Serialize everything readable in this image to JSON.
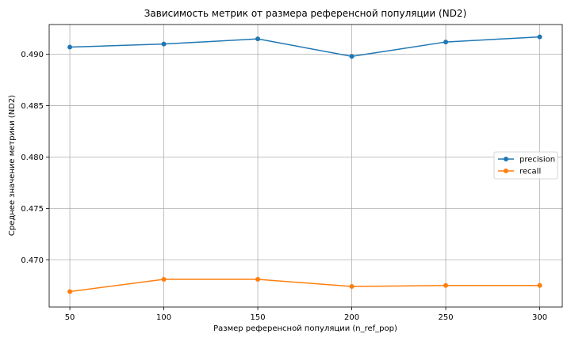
{
  "chart_data": {
    "type": "line",
    "title": "Зависимость метрик от размера референсной популяции (ND2)",
    "xlabel": "Размер референсной популяции (n_ref_pop)",
    "ylabel": "Среднее значение метрики (ND2)",
    "x": [
      50,
      100,
      150,
      200,
      250,
      300
    ],
    "xticks": [
      "50",
      "100",
      "150",
      "200",
      "250",
      "300"
    ],
    "xlim": [
      39,
      312
    ],
    "yticks": [
      "0.470",
      "0.475",
      "0.480",
      "0.485",
      "0.490"
    ],
    "ytick_values": [
      0.47,
      0.475,
      0.48,
      0.485,
      0.49
    ],
    "ylim": [
      0.4654,
      0.4929
    ],
    "grid": true,
    "legend_position": "center-right",
    "series": [
      {
        "name": "precision",
        "color": "#1f77b4",
        "values": [
          0.4907,
          0.491,
          0.4915,
          0.4898,
          0.4912,
          0.4917
        ]
      },
      {
        "name": "recall",
        "color": "#ff7f0e",
        "values": [
          0.4669,
          0.4681,
          0.4681,
          0.4674,
          0.4675,
          0.4675
        ]
      }
    ]
  }
}
